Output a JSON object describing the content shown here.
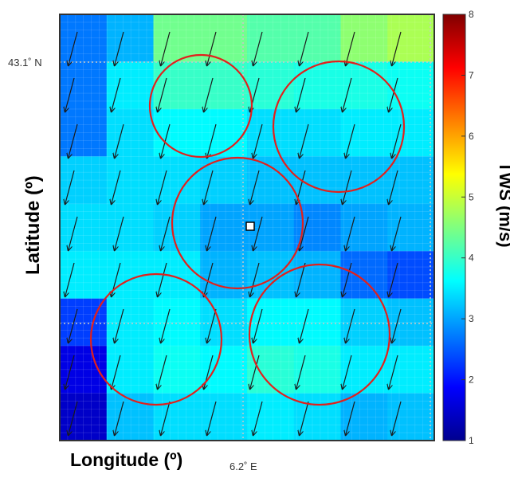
{
  "chart_data": {
    "type": "heatmap",
    "title": "",
    "xlabel": "Longitude (º)",
    "ylabel": "Latitude (º)",
    "x_tick_labels": [
      "6.2˚ E"
    ],
    "y_tick_labels": [
      "43.1˚ N"
    ],
    "colorbar": {
      "label": "TWS (m/s)",
      "range": [
        1,
        8
      ],
      "ticks": [
        "1",
        "2",
        "3",
        "4",
        "5",
        "6",
        "7",
        "8"
      ],
      "colormap": "jet"
    },
    "grid": true,
    "tws_grid": [
      [
        2.7,
        3.1,
        4.4,
        4.4,
        4.2,
        4.2,
        4.6,
        4.8
      ],
      [
        2.7,
        3.5,
        4.0,
        4.0,
        3.9,
        3.8,
        3.8,
        3.7
      ],
      [
        2.7,
        3.4,
        3.6,
        3.6,
        3.4,
        3.4,
        3.5,
        3.5
      ],
      [
        3.3,
        3.4,
        3.4,
        3.3,
        3.2,
        3.2,
        3.2,
        3.2
      ],
      [
        3.4,
        3.4,
        3.3,
        3.0,
        3.0,
        2.8,
        3.0,
        3.1
      ],
      [
        3.5,
        3.5,
        3.5,
        3.1,
        3.2,
        3.1,
        2.6,
        2.4
      ],
      [
        2.3,
        3.5,
        3.6,
        3.4,
        3.6,
        3.6,
        3.3,
        3.2
      ],
      [
        1.7,
        3.5,
        3.7,
        3.6,
        3.9,
        3.8,
        3.5,
        3.5
      ],
      [
        1.5,
        3.2,
        3.4,
        3.4,
        3.5,
        3.4,
        3.1,
        3.2
      ]
    ],
    "wind_direction_deg": 345,
    "highlight_circles": 5,
    "center_marker": "white-square"
  }
}
